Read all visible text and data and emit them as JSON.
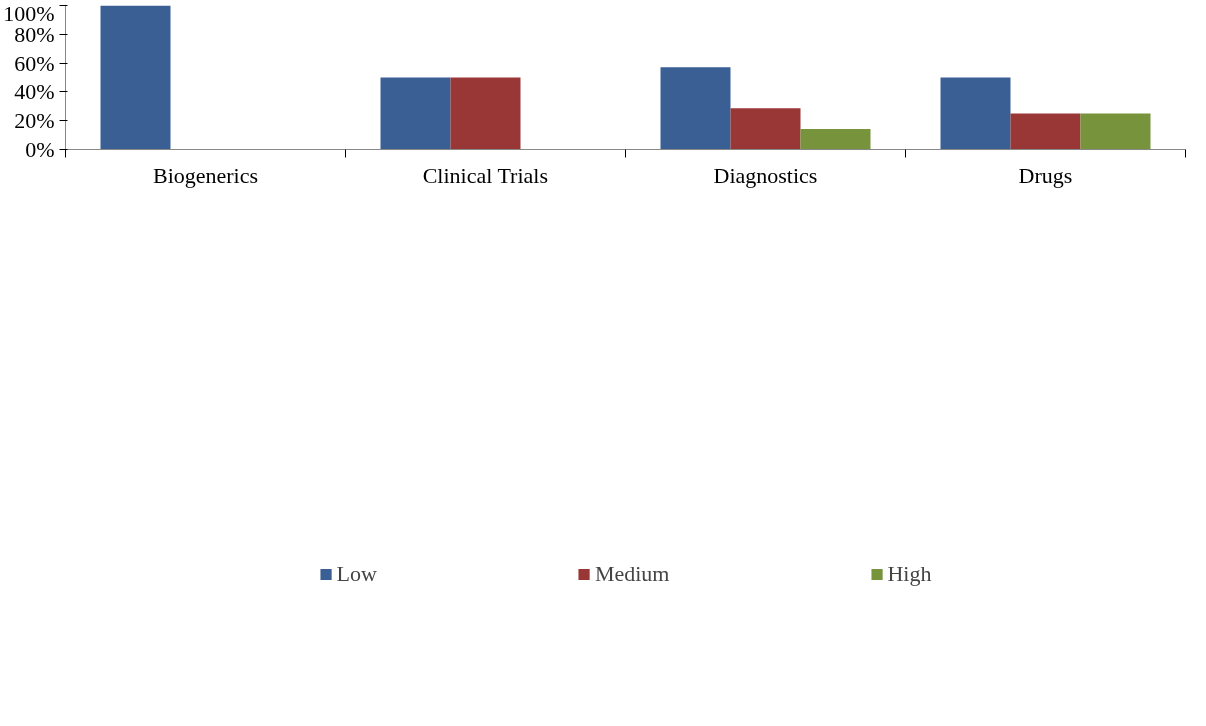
{
  "chart_data": {
    "type": "bar",
    "categories": [
      "Biogenerics",
      "Clinical Trials",
      "Diagnostics",
      "Drugs"
    ],
    "series": [
      {
        "name": "Low",
        "color": "#3a5f94",
        "values": [
          100,
          50,
          57.1,
          50
        ]
      },
      {
        "name": "Medium",
        "color": "#983735",
        "values": [
          0,
          50,
          28.6,
          25
        ]
      },
      {
        "name": "High",
        "color": "#77933c",
        "values": [
          0,
          0,
          14.3,
          25
        ]
      }
    ],
    "ylim": [
      0,
      100
    ],
    "yticks": [
      {
        "value": 0,
        "label": "0%"
      },
      {
        "value": 20,
        "label": "20%"
      },
      {
        "value": 40,
        "label": "40%"
      },
      {
        "value": 60,
        "label": "60%"
      },
      {
        "value": 80,
        "label": "80%"
      },
      {
        "value": 100,
        "label": "100%"
      }
    ],
    "grid": false,
    "legend": "bottom"
  }
}
